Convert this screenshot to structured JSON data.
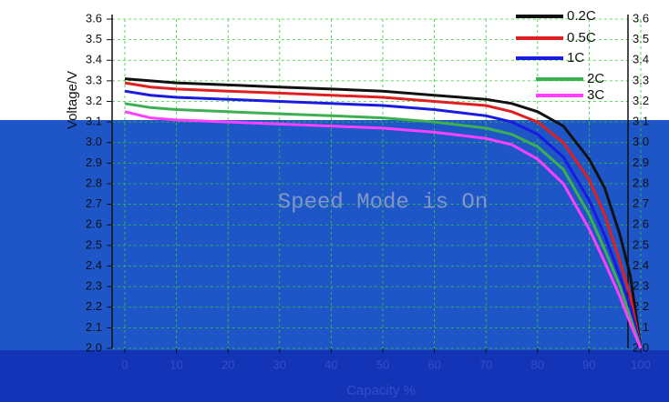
{
  "chart_data": {
    "type": "line",
    "x_label": "Capacity %",
    "y_label": "Voltage/V",
    "annotation": "Speed Mode is On",
    "x": [
      0,
      5,
      10,
      20,
      30,
      40,
      50,
      60,
      70,
      75,
      80,
      85,
      90,
      93,
      96,
      98,
      100
    ],
    "series": [
      {
        "name": "0.2C",
        "color": "#111111",
        "values": [
          3.31,
          3.3,
          3.29,
          3.28,
          3.27,
          3.26,
          3.25,
          3.23,
          3.21,
          3.19,
          3.15,
          3.08,
          2.92,
          2.78,
          2.55,
          2.35,
          2.0
        ]
      },
      {
        "name": "0.5C",
        "color": "#e02020",
        "values": [
          3.29,
          3.27,
          3.26,
          3.25,
          3.24,
          3.23,
          3.22,
          3.2,
          3.18,
          3.15,
          3.1,
          3.0,
          2.82,
          2.65,
          2.42,
          2.25,
          2.0
        ]
      },
      {
        "name": "1C",
        "color": "#1a1ae0",
        "values": [
          3.25,
          3.23,
          3.22,
          3.21,
          3.2,
          3.19,
          3.18,
          3.16,
          3.13,
          3.1,
          3.04,
          2.93,
          2.72,
          2.55,
          2.35,
          2.2,
          2.0
        ]
      },
      {
        "name": "2C",
        "color": "#3cb050",
        "values": [
          3.19,
          3.17,
          3.16,
          3.15,
          3.14,
          3.13,
          3.12,
          3.1,
          3.07,
          3.04,
          2.98,
          2.87,
          2.65,
          2.48,
          2.3,
          2.15,
          2.0
        ]
      },
      {
        "name": "3C",
        "color": "#ff40ff",
        "values": [
          3.15,
          3.12,
          3.11,
          3.1,
          3.09,
          3.08,
          3.07,
          3.05,
          3.02,
          2.99,
          2.92,
          2.8,
          2.58,
          2.42,
          2.25,
          2.12,
          2.0
        ]
      }
    ],
    "xlim": [
      -2.5,
      102
    ],
    "xticks": [
      0,
      10,
      20,
      30,
      40,
      50,
      60,
      70,
      80,
      90,
      100
    ],
    "ylim": [
      2.0,
      3.6
    ],
    "yticks": [
      {
        "value": 2.0,
        "label": "2.0"
      },
      2.1,
      2.2,
      2.3,
      2.4,
      2.5,
      2.6,
      2.7,
      2.8,
      2.9,
      {
        "value": 3.0,
        "label": "3.0"
      },
      3.1,
      3.2,
      3.3,
      3.4,
      3.5,
      3.6
    ],
    "grid": true,
    "legend": "top-right"
  }
}
